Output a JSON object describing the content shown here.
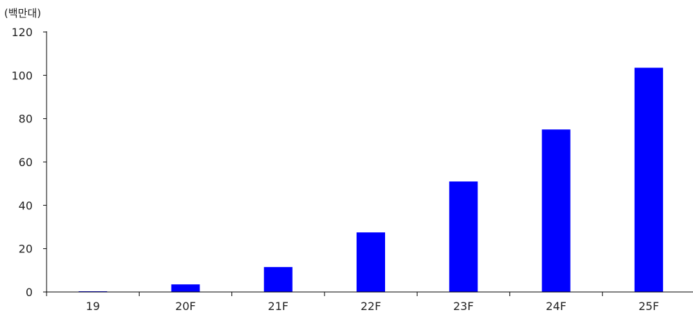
{
  "chart_data": {
    "type": "bar",
    "unit_label": "(백만대)",
    "categories": [
      "19",
      "20F",
      "21F",
      "22F",
      "23F",
      "24F",
      "25F"
    ],
    "values": [
      0.2,
      3.5,
      11.5,
      27.5,
      51,
      75,
      103.5
    ],
    "y_ticks": [
      "0",
      "20",
      "40",
      "60",
      "80",
      "100",
      "120"
    ],
    "ylim": [
      0,
      120
    ],
    "bar_color": "#0000ff",
    "grid": false,
    "legend": "none"
  }
}
